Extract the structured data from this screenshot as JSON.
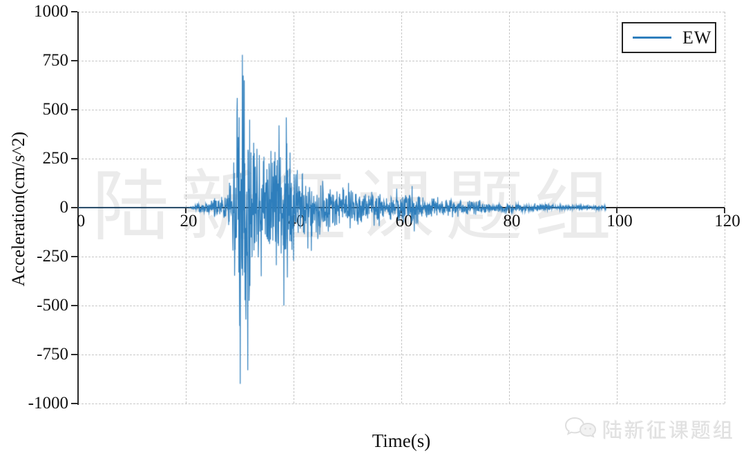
{
  "watermark": {
    "text": "陆新征课题组"
  },
  "footer_logo": {
    "text": "陆新征课题组"
  },
  "chart_data": {
    "type": "line",
    "title": "",
    "xlabel": "Time(s)",
    "ylabel": "Acceleration(cm/s^2)",
    "xlim": [
      0,
      120
    ],
    "ylim": [
      -1000,
      1000
    ],
    "x_ticks": [
      0,
      20,
      40,
      60,
      80,
      100,
      120
    ],
    "y_ticks": [
      1000,
      750,
      500,
      250,
      0,
      -250,
      -500,
      -750,
      -1000
    ],
    "grid": "dashed",
    "grid_color": "#c6c6c6",
    "axis_color": "#2a2a2a",
    "legend": {
      "position": "top-right",
      "entries": [
        {
          "label": "EW",
          "color": "#2e7ebc"
        }
      ]
    },
    "series": [
      {
        "name": "EW",
        "color": "#2e7ebc",
        "signal": {
          "description": "Seismic ground-motion accelerogram: quiescent 0-21 s, onset ~22 s, strongest shaking 29-40 s (peak +780 / -900 cm/s^2 near 30 s), gradual coda decay until record ends at ~98 s.",
          "dt": 0.05,
          "t_end": 98,
          "seed": 20130420,
          "envelope": [
            [
              0,
              0
            ],
            [
              20.5,
              0
            ],
            [
              21.5,
              10
            ],
            [
              23,
              30
            ],
            [
              25,
              55
            ],
            [
              27,
              80
            ],
            [
              28.3,
              130
            ],
            [
              29.2,
              430
            ],
            [
              30,
              900
            ],
            [
              30.8,
              820
            ],
            [
              31.6,
              780
            ],
            [
              32.2,
              400
            ],
            [
              33,
              330
            ],
            [
              34,
              340
            ],
            [
              35,
              300
            ],
            [
              36,
              300
            ],
            [
              37,
              410
            ],
            [
              38,
              480
            ],
            [
              38.8,
              460
            ],
            [
              39.6,
              300
            ],
            [
              40.5,
              270
            ],
            [
              42,
              175
            ],
            [
              44,
              165
            ],
            [
              46,
              145
            ],
            [
              48,
              125
            ],
            [
              50,
              110
            ],
            [
              53,
              95
            ],
            [
              56,
              85
            ],
            [
              59,
              78
            ],
            [
              61,
              95
            ],
            [
              63,
              85
            ],
            [
              65,
              62
            ],
            [
              68,
              52
            ],
            [
              71,
              44
            ],
            [
              74,
              36
            ],
            [
              77,
              30
            ],
            [
              80,
              26
            ],
            [
              84,
              20
            ],
            [
              88,
              16
            ],
            [
              92,
              13
            ],
            [
              96,
              11
            ],
            [
              98,
              10
            ]
          ],
          "notable_peaks": [
            {
              "t": 29.55,
              "a": 560
            },
            {
              "t": 29.9,
              "a": 460
            },
            {
              "t": 30.1,
              "a": -900
            },
            {
              "t": 30.5,
              "a": 780
            },
            {
              "t": 30.85,
              "a": 650
            },
            {
              "t": 31.5,
              "a": -830
            },
            {
              "t": 31.9,
              "a": -400
            },
            {
              "t": 33.2,
              "a": 300
            },
            {
              "t": 34.0,
              "a": -350
            },
            {
              "t": 35.8,
              "a": 290
            },
            {
              "t": 37.3,
              "a": 420
            },
            {
              "t": 38.2,
              "a": -500
            },
            {
              "t": 38.65,
              "a": 460
            },
            {
              "t": 40.0,
              "a": -270
            },
            {
              "t": 41.6,
              "a": 170
            },
            {
              "t": 44.5,
              "a": -160
            },
            {
              "t": 62.0,
              "a": 110
            }
          ]
        }
      }
    ]
  }
}
